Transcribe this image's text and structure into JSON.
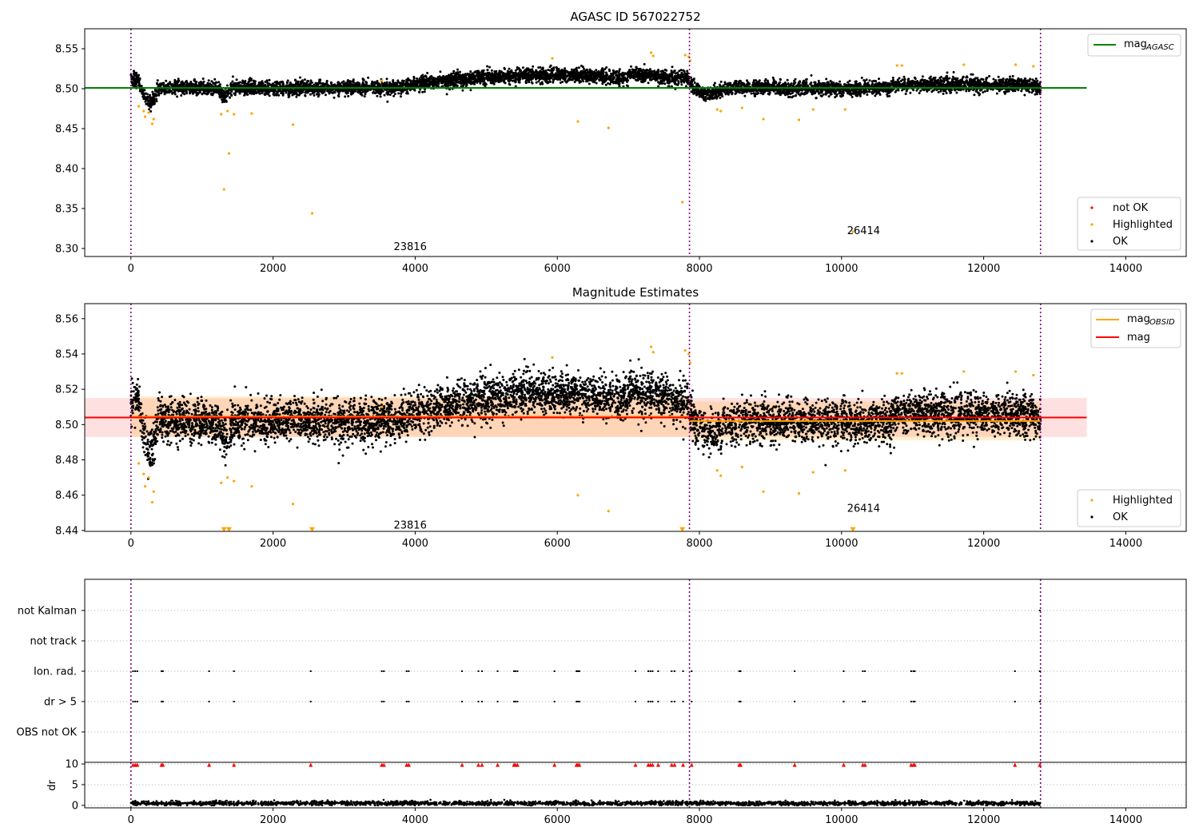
{
  "chart_data": [
    {
      "type": "scatter",
      "title": "AGASC ID 567022752",
      "xlim": [
        -650,
        14850
      ],
      "ylim": [
        8.29,
        8.575
      ],
      "xticks": [
        0,
        2000,
        4000,
        6000,
        8000,
        10000,
        12000,
        14000
      ],
      "xtick_labels": [
        "0",
        "2000",
        "4000",
        "6000",
        "8000",
        "10000",
        "12000",
        "14000"
      ],
      "yticks": [
        8.3,
        8.35,
        8.4,
        8.45,
        8.5,
        8.55
      ],
      "ytick_labels": [
        "8.30",
        "8.35",
        "8.40",
        "8.45",
        "8.50",
        "8.55"
      ],
      "vlines": [
        0,
        7860,
        12800
      ],
      "hlines": [
        {
          "name": "mag_AGASC",
          "y": 8.501,
          "x": [
            -650,
            13450
          ],
          "color": "#008000"
        }
      ],
      "annotations": [
        {
          "text": "23816",
          "x": 3930,
          "y": 8.302
        },
        {
          "text": "26414",
          "x": 10310,
          "y": 8.322
        }
      ],
      "legends": [
        {
          "placement": "top-right",
          "entries": [
            {
              "label": "mag",
              "sub": "AGASC",
              "kind": "line",
              "color": "#008000"
            }
          ]
        },
        {
          "placement": "bottom-right",
          "entries": [
            {
              "label": "not OK",
              "kind": "point",
              "color": "#ff0000"
            },
            {
              "label": "Highlighted",
              "kind": "point",
              "color": "#ffa500"
            },
            {
              "label": "OK",
              "kind": "point",
              "color": "#000000"
            }
          ]
        }
      ],
      "series": [
        {
          "name": "OK",
          "color": "#000000",
          "base": 8.501,
          "spread": 0.008
        },
        {
          "name": "Highlighted",
          "color": "#ffa500",
          "points": [
            [
              110,
              8.478
            ],
            [
              180,
              8.472
            ],
            [
              200,
              8.465
            ],
            [
              250,
              8.47
            ],
            [
              300,
              8.456
            ],
            [
              320,
              8.462
            ],
            [
              1270,
              8.468
            ],
            [
              1310,
              8.374
            ],
            [
              1360,
              8.472
            ],
            [
              1380,
              8.419
            ],
            [
              1450,
              8.468
            ],
            [
              1700,
              8.469
            ],
            [
              2280,
              8.455
            ],
            [
              2550,
              8.344
            ],
            [
              3530,
              8.51
            ],
            [
              5930,
              8.538
            ],
            [
              6290,
              8.459
            ],
            [
              6720,
              8.451
            ],
            [
              7320,
              8.545
            ],
            [
              7350,
              8.541
            ],
            [
              7760,
              8.358
            ],
            [
              7800,
              8.542
            ],
            [
              7850,
              8.54
            ],
            [
              7870,
              8.535
            ],
            [
              8250,
              8.474
            ],
            [
              8300,
              8.472
            ],
            [
              8600,
              8.476
            ],
            [
              8900,
              8.462
            ],
            [
              9400,
              8.461
            ],
            [
              9600,
              8.474
            ],
            [
              10050,
              8.474
            ],
            [
              10160,
              8.321
            ],
            [
              10780,
              8.529
            ],
            [
              10850,
              8.529
            ],
            [
              11720,
              8.53
            ],
            [
              12450,
              8.53
            ],
            [
              12700,
              8.528
            ]
          ]
        }
      ]
    },
    {
      "type": "scatter",
      "title": "Magnitude Estimates",
      "xlim": [
        -650,
        14850
      ],
      "ylim": [
        8.4395,
        8.5685
      ],
      "xticks": [
        0,
        2000,
        4000,
        6000,
        8000,
        10000,
        12000,
        14000
      ],
      "xtick_labels": [
        "0",
        "2000",
        "4000",
        "6000",
        "8000",
        "10000",
        "12000",
        "14000"
      ],
      "yticks": [
        8.44,
        8.46,
        8.48,
        8.5,
        8.52,
        8.54,
        8.56
      ],
      "ytick_labels": [
        "8.44",
        "8.46",
        "8.48",
        "8.50",
        "8.52",
        "8.54",
        "8.56"
      ],
      "vlines": [
        0,
        7860,
        12800
      ],
      "hlines": [
        {
          "name": "mag",
          "y": 8.504,
          "x": [
            -650,
            13450
          ],
          "color": "#ff0000"
        }
      ],
      "bands": [
        {
          "y0": 8.493,
          "y1": 8.515,
          "x": [
            -650,
            13450
          ],
          "color": "#ff0000",
          "alpha": 0.12
        }
      ],
      "segments": [
        {
          "name": "mag_OBSID",
          "x0": 0,
          "x1": 7860,
          "y": 8.5045,
          "color": "#ffa500",
          "band": [
            8.493,
            8.516
          ]
        },
        {
          "name": "mag_OBSID",
          "x0": 7860,
          "x1": 12800,
          "y": 8.502,
          "color": "#ffa500",
          "band": [
            8.491,
            8.513
          ]
        }
      ],
      "annotations": [
        {
          "text": "23816",
          "x": 3930,
          "y": 8.443
        },
        {
          "text": "26414",
          "x": 10310,
          "y": 8.4525
        }
      ],
      "legends": [
        {
          "placement": "top-right",
          "entries": [
            {
              "label": "mag",
              "sub": "OBSID",
              "kind": "line",
              "color": "#ffa500"
            },
            {
              "label": "mag",
              "kind": "line",
              "color": "#ff0000"
            }
          ]
        },
        {
          "placement": "bottom-right",
          "entries": [
            {
              "label": "Highlighted",
              "kind": "point",
              "color": "#ffa500"
            },
            {
              "label": "OK",
              "kind": "point",
              "color": "#000000"
            }
          ]
        }
      ],
      "series": [
        {
          "name": "OK",
          "color": "#000000",
          "base": 8.502,
          "spread": 0.011
        },
        {
          "name": "Highlighted",
          "color": "#ffa500",
          "points": [
            [
              110,
              8.478
            ],
            [
              180,
              8.472
            ],
            [
              200,
              8.465
            ],
            [
              250,
              8.47
            ],
            [
              300,
              8.456
            ],
            [
              320,
              8.462
            ],
            [
              1270,
              8.467
            ],
            [
              1360,
              8.47
            ],
            [
              1450,
              8.468
            ],
            [
              1700,
              8.465
            ],
            [
              2280,
              8.455
            ],
            [
              3530,
              8.51
            ],
            [
              5930,
              8.538
            ],
            [
              6290,
              8.46
            ],
            [
              6720,
              8.451
            ],
            [
              7320,
              8.544
            ],
            [
              7350,
              8.541
            ],
            [
              7800,
              8.542
            ],
            [
              7850,
              8.54
            ],
            [
              7870,
              8.535
            ],
            [
              8250,
              8.474
            ],
            [
              8300,
              8.471
            ],
            [
              8600,
              8.476
            ],
            [
              8900,
              8.462
            ],
            [
              9400,
              8.461
            ],
            [
              9600,
              8.473
            ],
            [
              10050,
              8.474
            ],
            [
              10780,
              8.529
            ],
            [
              10850,
              8.529
            ],
            [
              11720,
              8.53
            ],
            [
              12450,
              8.53
            ],
            [
              12700,
              8.528
            ]
          ]
        },
        {
          "name": "Highlighted (clipped)",
          "color": "#ffa500",
          "marker": "triangle-down",
          "points": [
            [
              1310,
              8.4405
            ],
            [
              1380,
              8.4405
            ],
            [
              2550,
              8.4405
            ],
            [
              7760,
              8.4405
            ],
            [
              10160,
              8.4405
            ]
          ]
        }
      ]
    },
    {
      "type": "scatter",
      "title": "",
      "xlim": [
        -650,
        14850
      ],
      "categories": [
        "not Kalman",
        "not track",
        "Ion. rad.",
        "dr > 5",
        "OBS not OK"
      ],
      "vlines": [
        0,
        7860,
        12800
      ],
      "series": [
        {
          "name": "Ion. rad.",
          "color": "#000000",
          "x": [
            30,
            60,
            90,
            430,
            450,
            1100,
            1450,
            2530,
            3530,
            3560,
            3880,
            3910,
            4660,
            4890,
            4940,
            5160,
            5390,
            5410,
            5440,
            5960,
            6270,
            6290,
            6310,
            7100,
            7280,
            7310,
            7340,
            7420,
            7610,
            7650,
            7770,
            7890,
            8560,
            8580,
            9340,
            10030,
            10300,
            10330,
            10980,
            11010,
            11030,
            12440,
            12790
          ]
        },
        {
          "name": "dr > 5",
          "color": "#000000",
          "x": [
            30,
            60,
            90,
            430,
            450,
            1100,
            1450,
            2530,
            3530,
            3560,
            3880,
            3910,
            4660,
            4890,
            4940,
            5160,
            5390,
            5410,
            5440,
            5960,
            6270,
            6290,
            6310,
            7100,
            7280,
            7310,
            7340,
            7420,
            7610,
            7650,
            7770,
            7890,
            8560,
            8580,
            9340,
            10030,
            10300,
            10330,
            10980,
            11010,
            11030,
            12440,
            12790
          ]
        },
        {
          "name": "not Kalman",
          "color": "#000000",
          "x": [
            12790
          ]
        }
      ]
    },
    {
      "type": "scatter",
      "title": "",
      "xlim": [
        -650,
        14850
      ],
      "ylim": [
        -0.6,
        10.4
      ],
      "ylabel": "dr",
      "yticks": [
        0,
        5,
        10
      ],
      "ytick_labels": [
        "0",
        "5",
        "10"
      ],
      "xticks": [
        0,
        2000,
        4000,
        6000,
        8000,
        10000,
        12000,
        14000
      ],
      "xtick_labels": [
        "0",
        "2000",
        "4000",
        "6000",
        "8000",
        "10000",
        "12000",
        "14000"
      ],
      "vlines": [
        0,
        7860,
        12800
      ],
      "series": [
        {
          "name": "dr",
          "color": "#000000",
          "base": 0.5,
          "spread": 0.25
        },
        {
          "name": "dr clipped",
          "color": "#ff0000",
          "marker": "triangle-up",
          "x": [
            30,
            60,
            90,
            430,
            450,
            1100,
            1450,
            2530,
            3530,
            3560,
            3880,
            3910,
            4660,
            4890,
            4940,
            5160,
            5390,
            5410,
            5440,
            5960,
            6270,
            6290,
            6310,
            7100,
            7280,
            7310,
            7340,
            7420,
            7610,
            7650,
            7770,
            7890,
            8560,
            8580,
            9340,
            10030,
            10300,
            10330,
            10980,
            11010,
            11030,
            12440,
            12790
          ],
          "y": 9.8
        }
      ]
    }
  ]
}
